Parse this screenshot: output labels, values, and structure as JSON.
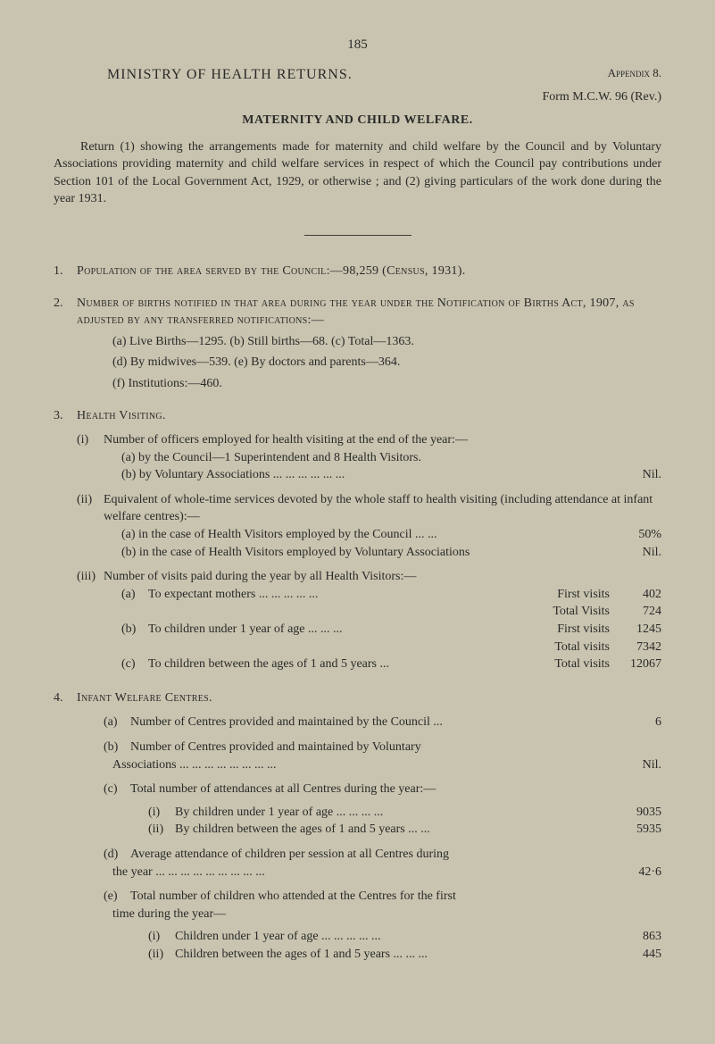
{
  "page_number": "185",
  "appendix": "Appendix 8.",
  "main_title": "MINISTRY OF HEALTH RETURNS.",
  "form_line": "Form M.C.W. 96 (Rev.)",
  "section_title": "MATERNITY AND CHILD WELFARE.",
  "intro": "Return (1) showing the arrangements made for maternity and child welfare by the Council and by Voluntary Associations providing maternity and child welfare services in respect of which the Council pay contributions under Section 101 of the Local Government Act, 1929, or otherwise ; and (2) giving particulars of the work done during the year 1931.",
  "item1": {
    "num": "1.",
    "text": "Population of the area served by the Council:—98,259 (Census, 1931)."
  },
  "item2": {
    "num": "2.",
    "heading": "Number of births notified in that area during the year under the Notification of Births Act, 1907, as adjusted by any transferred notifications:—",
    "a": "(a) Live Births—1295.   (b) Still births—68.   (c) Total—1363.",
    "d": "(d) By midwives—539.   (e) By doctors and parents—364.",
    "f": "(f) Institutions:—460."
  },
  "item3": {
    "num": "3.",
    "heading": "Health Visiting.",
    "i": {
      "label": "(i)",
      "text": "Number of officers employed for health visiting at the end of the year:—",
      "a": "(a)  by the Council—1 Superintendent and 8 Health Visitors.",
      "b": "(b)  by Voluntary Associations     ...     ...     ...     ...     ...     ...",
      "b_val": "Nil."
    },
    "ii": {
      "label": "(ii)",
      "text": "Equivalent of whole-time services devoted by the whole staff to health visiting (including attendance at infant welfare centres):—",
      "a": "(a)  in the case of Health Visitors employed by the Council   ...     ...",
      "a_val": "50%",
      "b": "(b)  in the case of Health Visitors employed by Voluntary Associations",
      "b_val": "Nil."
    },
    "iii": {
      "label": "(iii)",
      "text": "Number of visits paid during the year by all Health Visitors:—",
      "rows": [
        {
          "label": "(a)",
          "text": "To expectant mothers ...     ...     ...     ...     ...",
          "mid": "First visits",
          "val": "402"
        },
        {
          "label": "",
          "text": "",
          "mid": "Total Visits",
          "val": "724"
        },
        {
          "label": "(b)",
          "text": "To children under 1 year of age       ...     ...     ...",
          "mid": "First visits",
          "val": "1245"
        },
        {
          "label": "",
          "text": "",
          "mid": "Total visits",
          "val": "7342"
        },
        {
          "label": "(c)",
          "text": "To children between the ages of 1 and 5 years      ...",
          "mid": "Total visits",
          "val": "12067"
        }
      ]
    }
  },
  "item4": {
    "num": "4.",
    "heading": "Infant Welfare Centres.",
    "a": {
      "label": "(a)",
      "text": "Number of Centres provided and maintained by the Council     ...",
      "val": "6"
    },
    "b": {
      "label": "(b)",
      "text1": "Number of Centres provided and maintained by Voluntary",
      "text2": "Associations         ...     ...     ...     ...     ...     ...     ...     ...",
      "val": "Nil."
    },
    "c": {
      "label": "(c)",
      "text": "Total number of attendances at all Centres during the year:—",
      "i": {
        "label": "(i)",
        "text": "By children under 1 year of age          ...     ...     ...     ...",
        "val": "9035"
      },
      "ii": {
        "label": "(ii)",
        "text": "By children between the ages of 1 and 5 years        ...     ...",
        "val": "5935"
      }
    },
    "d": {
      "label": "(d)",
      "text1": "Average attendance of children per session at all Centres during",
      "text2": "the year     ...     ...     ...     ...     ...     ...     ...     ...     ...",
      "val": "42·6"
    },
    "e": {
      "label": "(e)",
      "text1": "Total number of children who attended at the Centres for the first",
      "text2": "time during the year—",
      "i": {
        "label": "(i)",
        "text": "Children under 1 year of age     ...     ...     ...     ...     ...",
        "val": "863"
      },
      "ii": {
        "label": "(ii)",
        "text": "Children between the ages of 1 and 5 years   ...     ...     ...",
        "val": "445"
      }
    }
  }
}
